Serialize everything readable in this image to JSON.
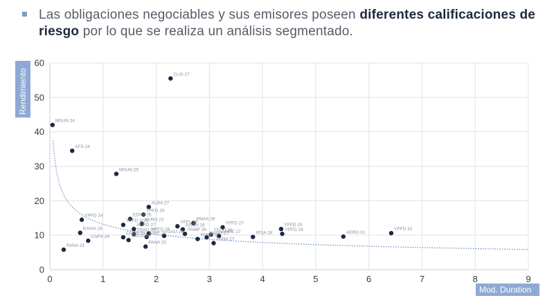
{
  "intro": {
    "before": "Las obligaciones negociables y sus emisores poseen ",
    "bold1": "diferentes calificaciones de riesgo",
    "after": " por lo que se realiza un análisis segmentado."
  },
  "colors": {
    "point": "#1b2a44",
    "grid": "#dfe3e8",
    "trend": "#6f8fc4",
    "axis_label_bg": "#8fa9d4",
    "bullet": "#7a9cc6"
  },
  "chart_data": {
    "type": "scatter",
    "xlabel": "Mod. Duration",
    "ylabel": "Rendimiento",
    "xlim": [
      0,
      9
    ],
    "ylim": [
      0,
      60
    ],
    "xticks": [
      0,
      1,
      2,
      3,
      4,
      5,
      6,
      7,
      8,
      9
    ],
    "yticks": [
      0,
      10,
      20,
      30,
      40,
      50,
      60
    ],
    "grid": true,
    "trendline": {
      "style": "dotted",
      "form": "power",
      "a": 13.2,
      "b": -0.37
    },
    "points": [
      {
        "label": "CLIS 27",
        "x": 2.27,
        "y": 55.5
      },
      {
        "label": "MSUN 24",
        "x": 0.05,
        "y": 42
      },
      {
        "label": "AFS 24",
        "x": 0.42,
        "y": 34.5
      },
      {
        "label": "MSUN 25",
        "x": 1.25,
        "y": 27.8
      },
      {
        "label": "ALBA 27",
        "x": 1.86,
        "y": 18.2
      },
      {
        "label": "YPFD 25",
        "x": 1.76,
        "y": 16
      },
      {
        "label": "EDNA 25",
        "x": 1.51,
        "y": 14.7
      },
      {
        "label": "YPFD 24",
        "x": 0.6,
        "y": 14.5
      },
      {
        "label": "AERO 23",
        "x": 1.73,
        "y": 13.3
      },
      {
        "label": "YPFD 3/25",
        "x": 1.38,
        "y": 13
      },
      {
        "label": "YPFL 26",
        "x": 2.4,
        "y": 12.6
      },
      {
        "label": "BMAA 26",
        "x": 2.7,
        "y": 13.5
      },
      {
        "label": "RAGH 26",
        "x": 2.5,
        "y": 11.7
      },
      {
        "label": "AERO 27",
        "x": 1.58,
        "y": 11.8
      },
      {
        "label": "YPFD 27",
        "x": 3.25,
        "y": 12.3
      },
      {
        "label": "YPFD 29",
        "x": 4.35,
        "y": 11.8
      },
      {
        "label": "RAGH 24",
        "x": 0.57,
        "y": 10.7
      },
      {
        "label": "TRAD 25",
        "x": 1.58,
        "y": 10.3
      },
      {
        "label": "YPFD 26",
        "x": 1.86,
        "y": 10.5
      },
      {
        "label": "TECO 26",
        "x": 3.03,
        "y": 10.2
      },
      {
        "label": "CGCS 25",
        "x": 1.38,
        "y": 9.4
      },
      {
        "label": "EHIP 26",
        "x": 1.82,
        "y": 9.5
      },
      {
        "label": "GALI 26",
        "x": 2.15,
        "y": 9.8
      },
      {
        "label": "GNBE 27",
        "x": 3.18,
        "y": 9.8
      },
      {
        "label": "PAMP 26",
        "x": 2.54,
        "y": 10.4
      },
      {
        "label": "RAGH 27",
        "x": 2.95,
        "y": 9.4
      },
      {
        "label": "IRSA 28",
        "x": 3.82,
        "y": 9.5
      },
      {
        "label": "YPFD 28",
        "x": 4.37,
        "y": 10.4
      },
      {
        "label": "AERO 31",
        "x": 5.52,
        "y": 9.6
      },
      {
        "label": "YPFD 33",
        "x": 6.42,
        "y": 10.6
      },
      {
        "label": "TECO 25",
        "x": 1.48,
        "y": 8.6
      },
      {
        "label": "PAMP 27",
        "x": 2.78,
        "y": 8.9
      },
      {
        "label": "PANA 27",
        "x": 3.08,
        "y": 7.7
      },
      {
        "label": "CAPX 24",
        "x": 0.72,
        "y": 8.4
      },
      {
        "label": "PANA 25",
        "x": 1.8,
        "y": 6.7
      },
      {
        "label": "PANA 23",
        "x": 0.26,
        "y": 5.8
      }
    ]
  }
}
